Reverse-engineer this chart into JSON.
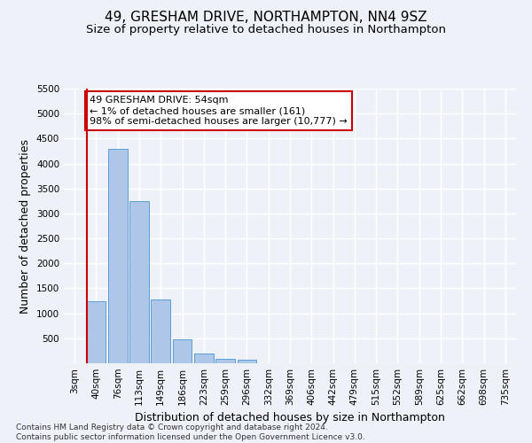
{
  "title": "49, GRESHAM DRIVE, NORTHAMPTON, NN4 9SZ",
  "subtitle": "Size of property relative to detached houses in Northampton",
  "xlabel": "Distribution of detached houses by size in Northampton",
  "ylabel": "Number of detached properties",
  "categories": [
    "3sqm",
    "40sqm",
    "76sqm",
    "113sqm",
    "149sqm",
    "186sqm",
    "223sqm",
    "259sqm",
    "296sqm",
    "332sqm",
    "369sqm",
    "406sqm",
    "442sqm",
    "479sqm",
    "515sqm",
    "552sqm",
    "589sqm",
    "625sqm",
    "662sqm",
    "698sqm",
    "735sqm"
  ],
  "values": [
    0,
    1250,
    4300,
    3250,
    1280,
    480,
    200,
    90,
    65,
    0,
    0,
    0,
    0,
    0,
    0,
    0,
    0,
    0,
    0,
    0,
    0
  ],
  "bar_color": "#aec6e8",
  "bar_edge_color": "#5a9fd4",
  "vline_color": "#cc0000",
  "vline_x_index": 1,
  "annotation_text": "49 GRESHAM DRIVE: 54sqm\n← 1% of detached houses are smaller (161)\n98% of semi-detached houses are larger (10,777) →",
  "annotation_box_color": "#ffffff",
  "annotation_box_edge": "#cc0000",
  "ylim": [
    0,
    5500
  ],
  "yticks": [
    0,
    500,
    1000,
    1500,
    2000,
    2500,
    3000,
    3500,
    4000,
    4500,
    5000,
    5500
  ],
  "footer": "Contains HM Land Registry data © Crown copyright and database right 2024.\nContains public sector information licensed under the Open Government Licence v3.0.",
  "background_color": "#eef2f8",
  "grid_color": "#ffffff",
  "title_fontsize": 11,
  "subtitle_fontsize": 9.5,
  "axis_label_fontsize": 9,
  "tick_fontsize": 7.5,
  "annotation_fontsize": 8,
  "footer_fontsize": 6.5
}
